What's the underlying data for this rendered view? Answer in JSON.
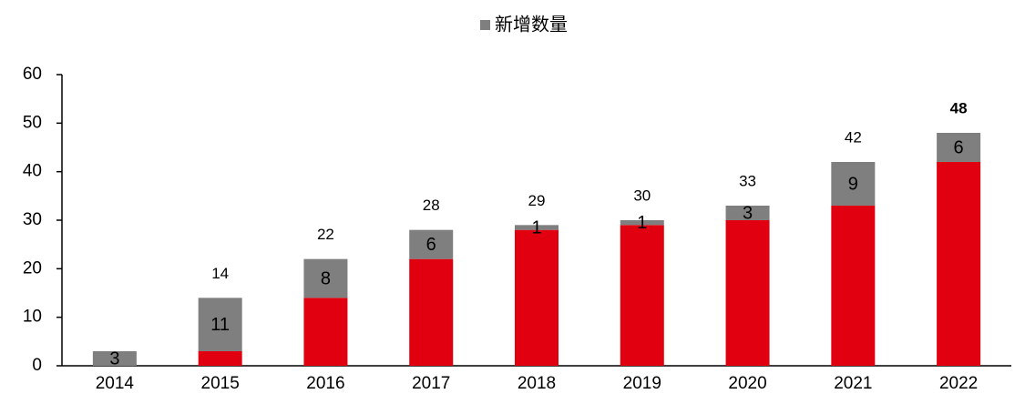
{
  "chart_data": {
    "type": "stacked_bar",
    "categories": [
      "2014",
      "2015",
      "2016",
      "2017",
      "2018",
      "2019",
      "2020",
      "2021",
      "2022"
    ],
    "series": [
      {
        "color": "#e0000f",
        "values": [
          0,
          3,
          14,
          22,
          28,
          29,
          30,
          33,
          42
        ]
      },
      {
        "name": "新增数量",
        "color": "#7f7f7f",
        "values": [
          3,
          11,
          8,
          6,
          1,
          1,
          3,
          9,
          6
        ]
      }
    ],
    "totals": [
      null,
      14,
      22,
      28,
      29,
      30,
      33,
      42,
      48
    ],
    "ylim": [
      0,
      60
    ],
    "yticks": [
      0,
      10,
      20,
      30,
      40,
      50,
      60
    ],
    "grid": false,
    "legend": "top"
  }
}
